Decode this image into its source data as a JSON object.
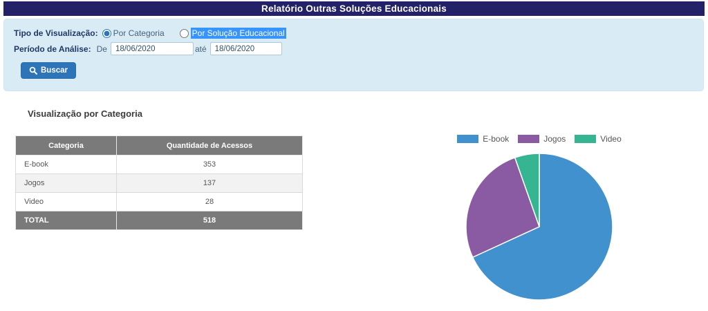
{
  "header": {
    "title": "Relatório Outras Soluções Educacionais"
  },
  "filters": {
    "visualization_label": "Tipo de Visualização:",
    "options": [
      {
        "label": "Por Categoria",
        "selected": true
      },
      {
        "label": "Por Solução Educacional",
        "selected": false
      }
    ],
    "period_label": "Período de Análise:",
    "from_label": "De",
    "from_value": "18/06/2020",
    "to_label": "até",
    "to_value": "18/06/2020",
    "search_button": "Buscar"
  },
  "section": {
    "title": "Visualização por Categoria"
  },
  "table": {
    "headers": [
      "Categoria",
      "Quantidade de Acessos"
    ],
    "rows": [
      {
        "category": "E-book",
        "count": "353"
      },
      {
        "category": "Jogos",
        "count": "137"
      },
      {
        "category": "Video",
        "count": "28"
      }
    ],
    "total_label": "TOTAL",
    "total_value": "518"
  },
  "chart_data": {
    "type": "pie",
    "categories": [
      "E-book",
      "Jogos",
      "Video"
    ],
    "values": [
      353,
      137,
      28
    ],
    "total": 518,
    "colors": [
      "#4191cf",
      "#8a5ba2",
      "#35b592"
    ],
    "legend_position": "top",
    "start_angle_deg": 0,
    "direction": "clockwise"
  },
  "colors": {
    "header_bg": "#232168",
    "panel_bg": "#d9ecf6",
    "button_bg": "#2e74b8",
    "table_header_bg": "#7a7a7a",
    "selection_highlight": "#3794ff"
  }
}
